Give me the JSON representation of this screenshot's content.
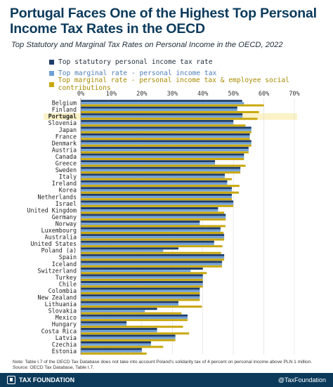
{
  "header": {
    "title": "Portugal Faces One of the Highest Top Personal Income Tax Rates in the OECD",
    "subtitle": "Top Statutory and Marginal Tax Rates on Personal Income in the OECD, 2022"
  },
  "legend": [
    {
      "label": "Top statutory personal income tax rate",
      "color": "#1f3d6b"
    },
    {
      "label": "Top marginal rate - personal income tax",
      "color": "#6ea0d8"
    },
    {
      "label": "Top marginal rate - personal income tax & employee social contributions",
      "color": "#c9a80d"
    }
  ],
  "chart_data": {
    "type": "bar",
    "orientation": "horizontal",
    "xlim": [
      0,
      70
    ],
    "x_ticks": [
      "0%",
      "10%",
      "20%",
      "30%",
      "40%",
      "50%",
      "60%",
      "70%"
    ],
    "highlight": "Portugal",
    "categories": [
      "Belgium",
      "Finland",
      "Portugal",
      "Slovenia",
      "Japan",
      "France",
      "Denmark",
      "Austria",
      "Canada",
      "Greece",
      "Sweden",
      "Italy",
      "Ireland",
      "Korea",
      "Netherlands",
      "Israel",
      "United Kingdom",
      "Germany",
      "Norway",
      "Luxembourg",
      "Australia",
      "United States",
      "Poland (a)",
      "Spain",
      "Iceland",
      "Switzerland",
      "Turkey",
      "Chile",
      "Colombia",
      "New Zealand",
      "Lithuania",
      "Slovakia",
      "Mexico",
      "Hungary",
      "Costa Rica",
      "Latvia",
      "Czechia",
      "Estonia"
    ],
    "series": [
      {
        "name": "Top statutory personal income tax rate",
        "color": "#1f3d6b",
        "values": [
          52.9,
          51.3,
          53.0,
          50.0,
          55.9,
          55.4,
          55.9,
          55.0,
          53.5,
          44.0,
          52.3,
          47.2,
          48.0,
          49.5,
          49.5,
          50.0,
          45.0,
          47.5,
          39.0,
          45.8,
          47.0,
          43.7,
          32.0,
          47.0,
          46.3,
          40.0,
          40.0,
          40.0,
          39.0,
          39.0,
          32.0,
          25.0,
          35.0,
          15.0,
          25.0,
          31.0,
          23.0,
          20.0
        ]
      },
      {
        "name": "Top marginal rate - personal income tax",
        "color": "#6ea0d8",
        "values": [
          53.5,
          51.3,
          53.0,
          50.0,
          55.9,
          55.4,
          55.9,
          55.0,
          53.5,
          44.0,
          52.3,
          47.2,
          48.0,
          49.5,
          49.5,
          50.0,
          45.0,
          47.5,
          39.0,
          45.8,
          47.0,
          43.7,
          27.0,
          47.0,
          46.3,
          36.0,
          40.0,
          40.0,
          39.0,
          39.0,
          32.0,
          21.0,
          35.0,
          15.0,
          25.0,
          31.0,
          23.0,
          20.0
        ]
      },
      {
        "name": "Top marginal rate - personal income tax & employee social contributions",
        "color": "#c9a80d",
        "values": [
          60.0,
          58.4,
          57.9,
          54.0,
          55.9,
          55.4,
          55.9,
          55.0,
          53.5,
          54.0,
          52.3,
          49.5,
          52.0,
          51.8,
          49.5,
          50.0,
          47.0,
          47.5,
          47.4,
          46.8,
          47.0,
          46.4,
          46.0,
          47.0,
          46.3,
          41.3,
          40.0,
          40.0,
          39.0,
          39.0,
          39.7,
          33.0,
          35.0,
          33.5,
          35.5,
          31.0,
          27.0,
          21.6
        ]
      }
    ]
  },
  "footer": {
    "note": "Note: Table I.7 of the OECD Tax Database does not take into account Poland's solidarity tax of 4 percent on personal income above PLN 1 million.",
    "source": "Source: OECD Tax Database, Table I.7.",
    "brand": "TAX FOUNDATION",
    "handle": "@TaxFoundation",
    "brand_color": "#0b3a5b"
  }
}
